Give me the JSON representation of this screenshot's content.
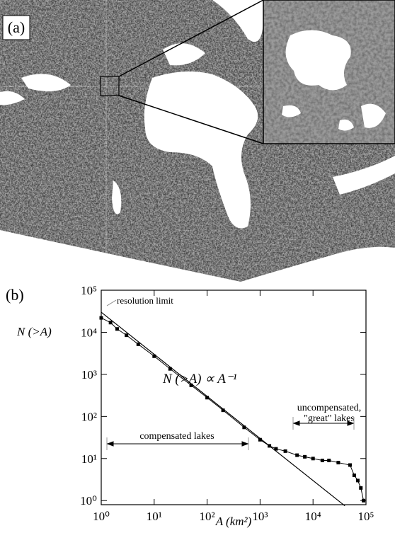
{
  "image_label": "(a)",
  "chart_data": {
    "type": "line",
    "panel_label": "(b)",
    "x_label": "A (km²)",
    "y_label": "N (>A)",
    "log_x": true,
    "log_y": true,
    "xlim": [
      1,
      100000
    ],
    "ylim": [
      0.8,
      100000
    ],
    "xticks": [
      {
        "value": 1,
        "label": "10⁰"
      },
      {
        "value": 10,
        "label": "10¹"
      },
      {
        "value": 100,
        "label": "10²"
      },
      {
        "value": 1000,
        "label": "10³"
      },
      {
        "value": 10000,
        "label": "10⁴"
      },
      {
        "value": 100000,
        "label": "10⁵"
      }
    ],
    "yticks": [
      {
        "value": 1,
        "label": "10⁰"
      },
      {
        "value": 10,
        "label": "10¹"
      },
      {
        "value": 100,
        "label": "10²"
      },
      {
        "value": 1000,
        "label": "10³"
      },
      {
        "value": 10000,
        "label": "10⁴"
      },
      {
        "value": 100000,
        "label": "10⁵"
      }
    ],
    "series": [
      {
        "color": "#000000",
        "markers": true,
        "x": [
          1,
          1.5,
          2,
          3,
          5,
          10,
          20,
          50,
          100,
          200,
          500,
          1000,
          1500,
          2000,
          3000,
          5000,
          7000,
          10000,
          15000,
          20000,
          30000,
          50000,
          60000,
          70000,
          80000,
          90000
        ],
        "values": [
          22000,
          17000,
          12000,
          8500,
          5200,
          2700,
          1350,
          550,
          280,
          140,
          55,
          28,
          20,
          17,
          15,
          12,
          11,
          10,
          9,
          9,
          8,
          7,
          4,
          3,
          2,
          1
        ]
      },
      {
        "color": "#000000",
        "markers": false,
        "x": [
          1,
          40000
        ],
        "values": [
          30000,
          0.75
        ]
      }
    ],
    "annotations": [
      "resolution limit",
      "N (>A) ∝ A⁻¹",
      "compensated lakes",
      "uncompensated,",
      "\"great\" lakes"
    ]
  }
}
